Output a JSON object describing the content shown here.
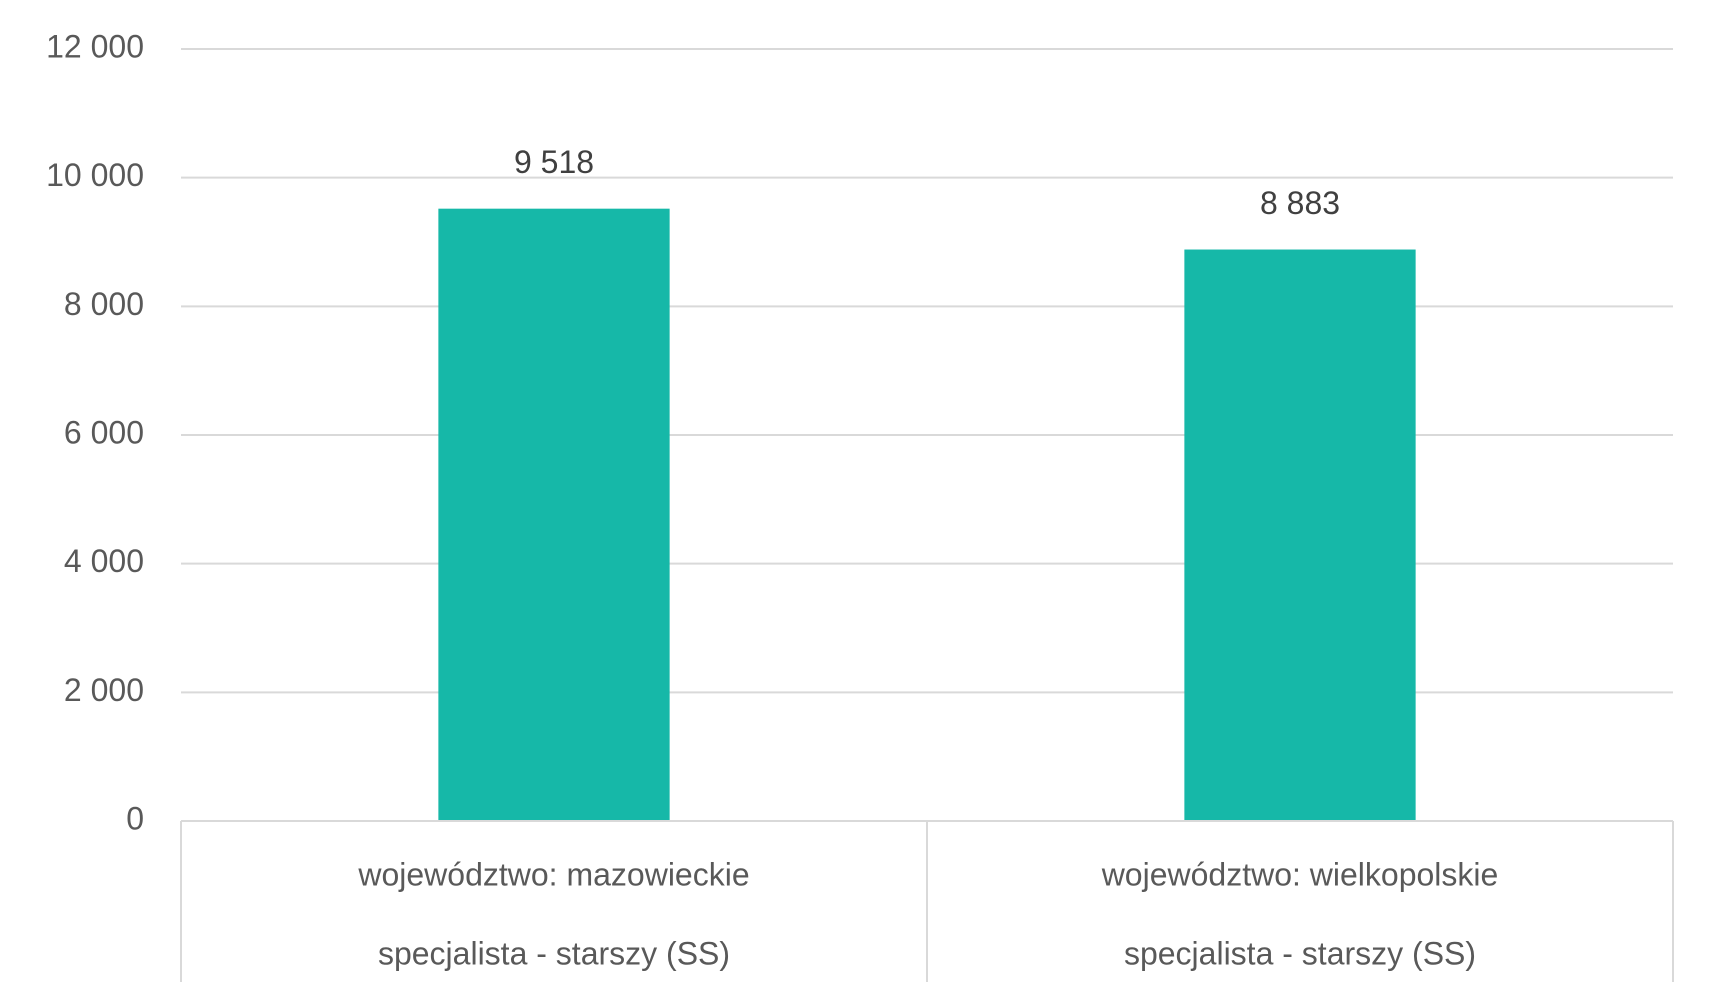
{
  "chart_data": {
    "type": "bar",
    "categories": [
      [
        "województwo: mazowieckie",
        "specjalista - starszy (SS)"
      ],
      [
        "województwo: wielkopolskie",
        "specjalista - starszy (SS)"
      ]
    ],
    "values": [
      9518,
      8883
    ],
    "value_labels": [
      "9 518",
      "8 883"
    ],
    "color": "#16b8a8",
    "ylim": [
      0,
      12000
    ],
    "yticks": [
      0,
      {
        "value": 2000,
        "label": "2 000"
      },
      {
        "value": 4000,
        "label": "4 000"
      },
      {
        "value": 6000,
        "label": "6 000"
      },
      {
        "value": 8000,
        "label": "8 000"
      },
      {
        "value": 10000,
        "label": "10 000"
      },
      {
        "value": 12000,
        "label": "12 000"
      }
    ],
    "grid": true
  }
}
